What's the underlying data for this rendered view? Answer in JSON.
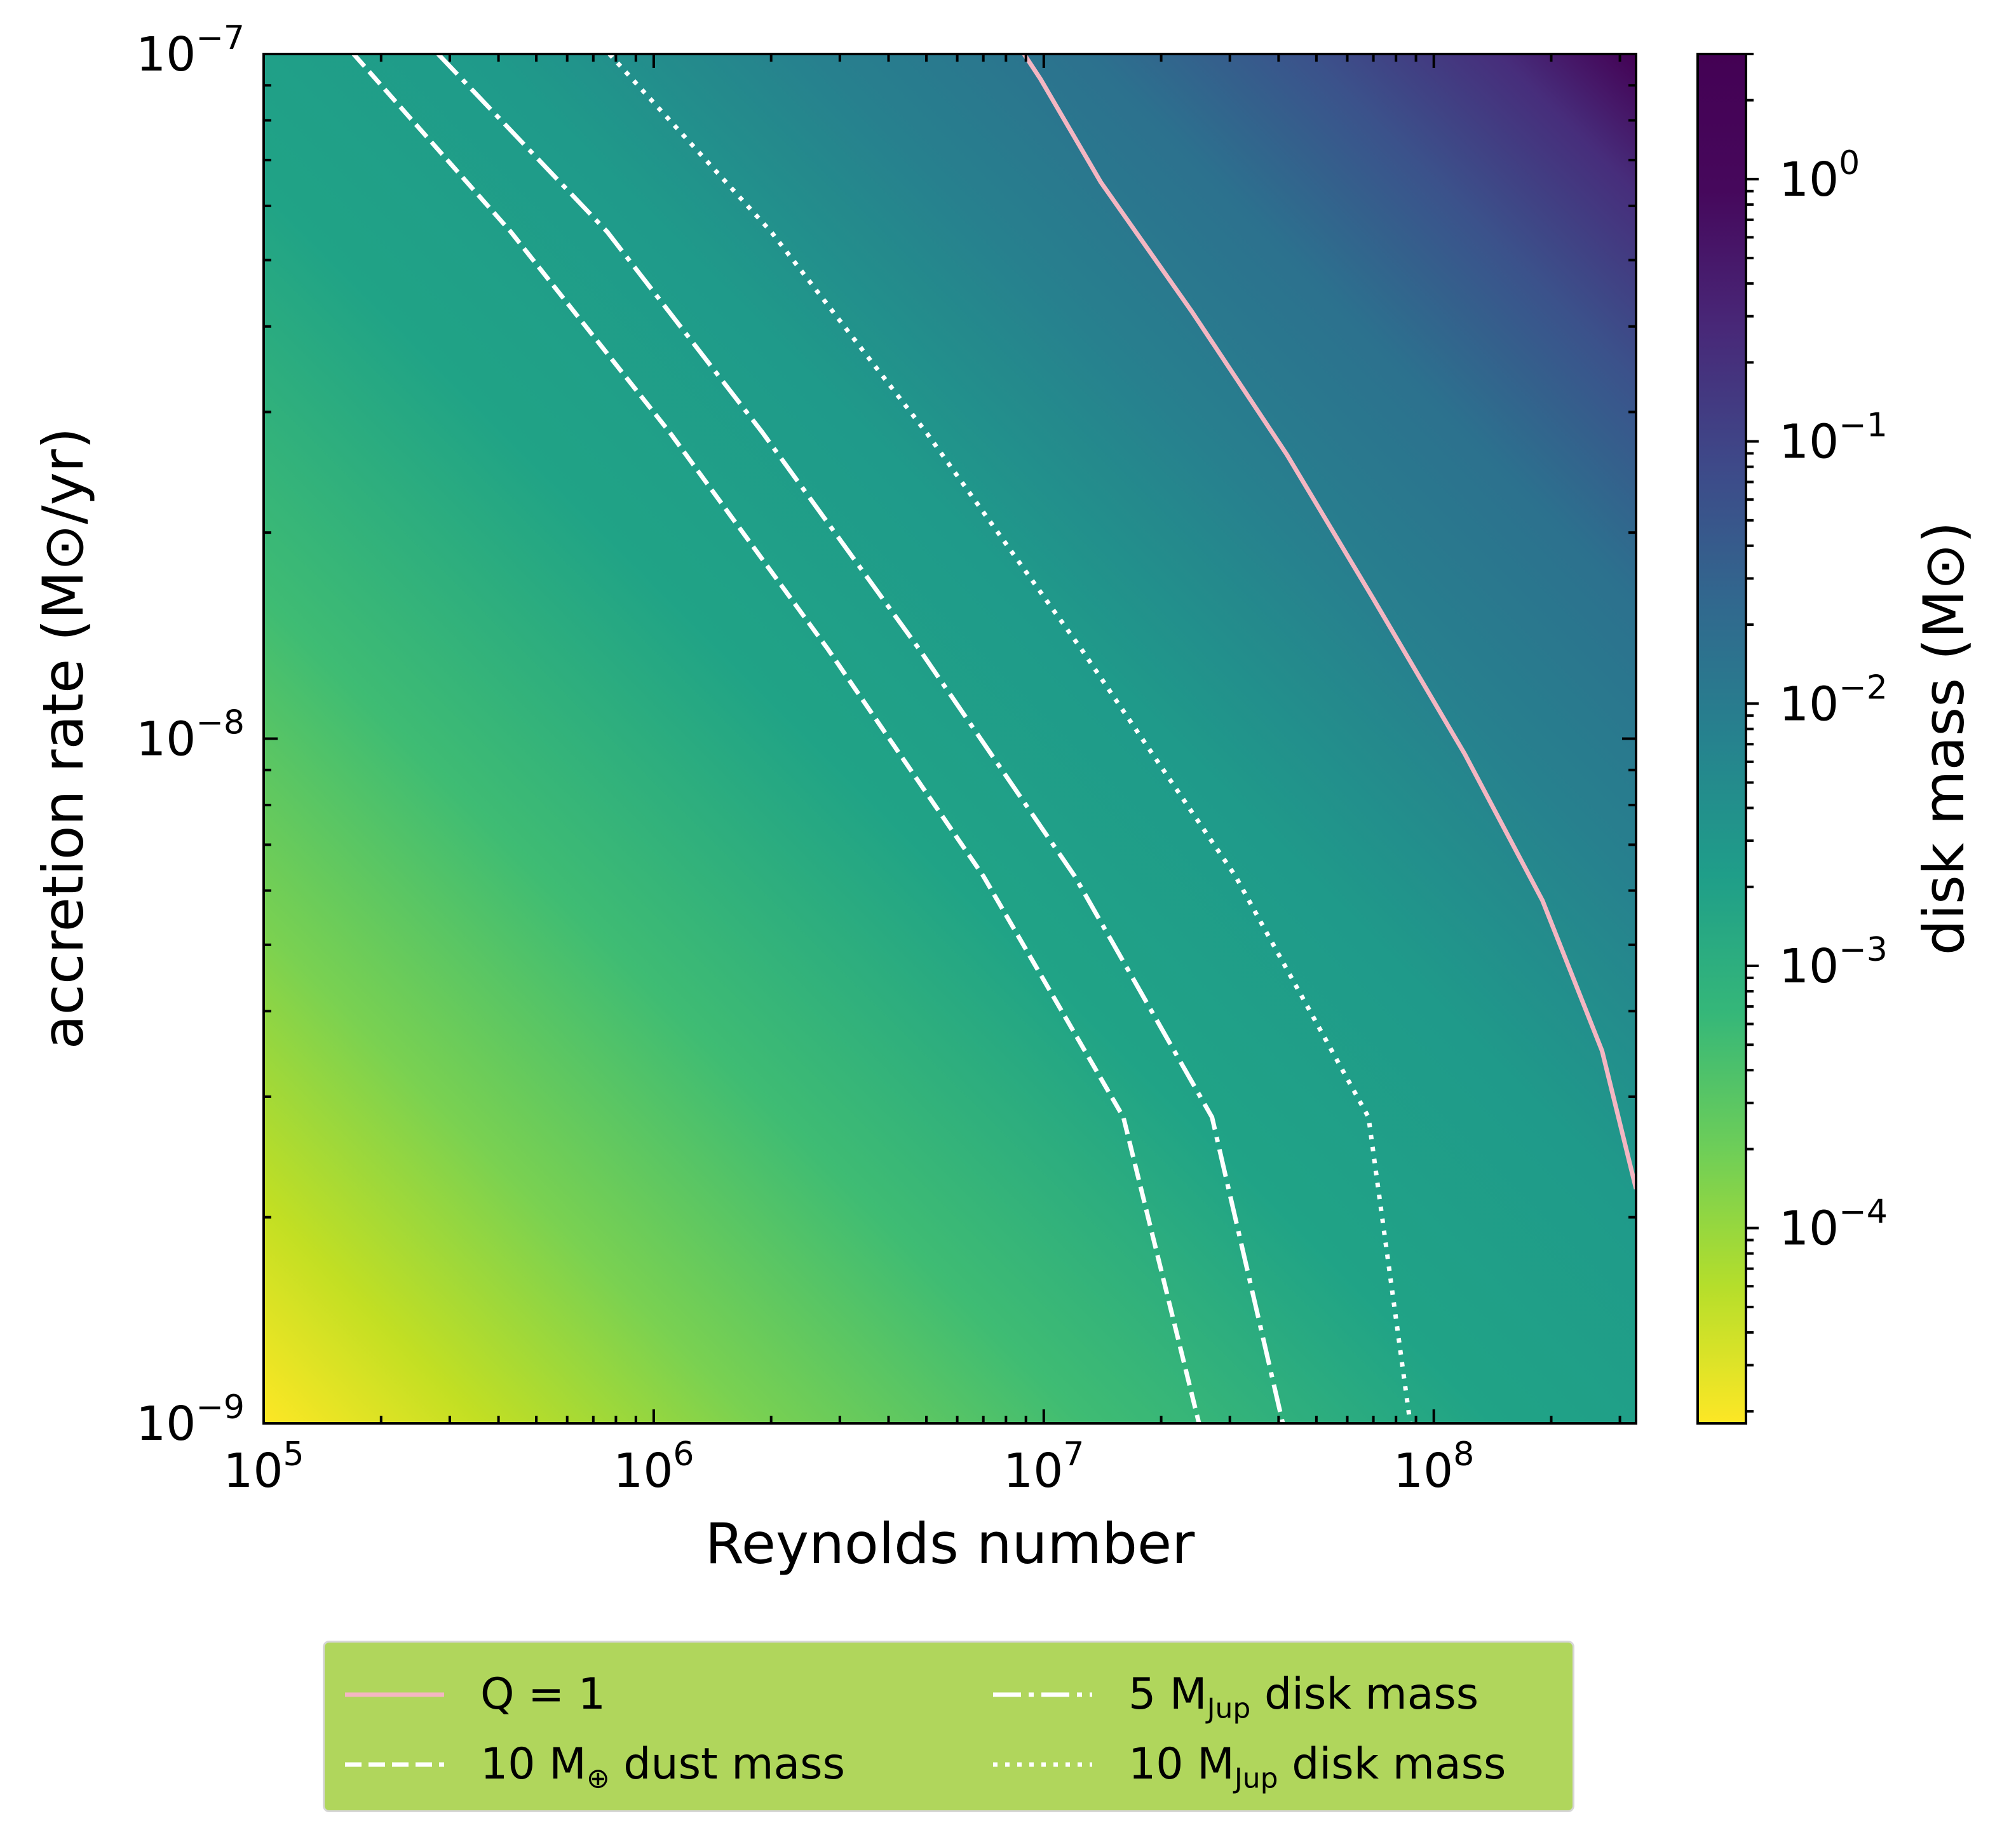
{
  "chart_data": {
    "type": "heatmap",
    "xlabel": "Reynolds number",
    "ylabel": "accretion rate (M⊙/yr)",
    "x_scale": "log",
    "y_scale": "log",
    "xlim": [
      100000,
      330000000
    ],
    "ylim": [
      1e-09,
      1e-07
    ],
    "x_ticks": [
      {
        "value": 100000,
        "base": "10",
        "exp": "5"
      },
      {
        "value": 1000000,
        "base": "10",
        "exp": "6"
      },
      {
        "value": 10000000,
        "base": "10",
        "exp": "7"
      },
      {
        "value": 100000000,
        "base": "10",
        "exp": "8"
      }
    ],
    "y_ticks": [
      {
        "value": 1e-09,
        "base": "10",
        "exp": "−9"
      },
      {
        "value": 1e-08,
        "base": "10",
        "exp": "−8"
      },
      {
        "value": 1e-07,
        "base": "10",
        "exp": "−7"
      }
    ],
    "colorbar": {
      "label": "disk mass (M⊙)",
      "scale": "log",
      "range": [
        1.8e-05,
        3.0
      ],
      "colormap": "viridis_r",
      "ticks": [
        {
          "value": 0.0001,
          "base": "10",
          "exp": "−4"
        },
        {
          "value": 0.001,
          "base": "10",
          "exp": "−3"
        },
        {
          "value": 0.01,
          "base": "10",
          "exp": "−2"
        },
        {
          "value": 0.1,
          "base": "10",
          "exp": "−1"
        },
        {
          "value": 1,
          "base": "10",
          "exp": "0"
        }
      ]
    },
    "grid": false,
    "legend_position": "below",
    "series": [
      {
        "name": "Q = 1",
        "color": "#f4b6c2",
        "style": "solid",
        "points": [
          [
            8900000,
            1e-07
          ],
          [
            9800000,
            9.2e-08
          ],
          [
            14000000,
            6.5e-08
          ],
          [
            24000000,
            4.2e-08
          ],
          [
            42000000,
            2.6e-08
          ],
          [
            70000000,
            1.6e-08
          ],
          [
            120000000,
            9.5e-09
          ],
          [
            190000000,
            5.8e-09
          ],
          [
            270000000,
            3.5e-09
          ],
          [
            330000000,
            2.2e-09
          ]
        ]
      },
      {
        "name": "10 M⊕ dust mass",
        "color": "#ffffff",
        "style": "dashed",
        "points": [
          [
            170000,
            1e-07
          ],
          [
            430000,
            5.5e-08
          ],
          [
            1100000,
            2.8e-08
          ],
          [
            2800000,
            1.35e-08
          ],
          [
            7000000,
            6.3e-09
          ],
          [
            16000000,
            2.8e-09
          ],
          [
            25000000,
            1e-09
          ]
        ]
      },
      {
        "name": "5 Mⱼᵤₚ disk mass",
        "color": "#ffffff",
        "style": "dashdot",
        "points": [
          [
            280000,
            1e-07
          ],
          [
            760000,
            5.5e-08
          ],
          [
            1900000,
            2.8e-08
          ],
          [
            4800000,
            1.35e-08
          ],
          [
            12000000,
            6.3e-09
          ],
          [
            27000000,
            2.8e-09
          ],
          [
            41000000,
            1e-09
          ]
        ]
      },
      {
        "name": "10 Mⱼᵤₚ disk mass",
        "color": "#ffffff",
        "style": "dotted",
        "points": [
          [
            770000,
            1e-07
          ],
          [
            2000000,
            5.5e-08
          ],
          [
            5000000,
            2.8e-08
          ],
          [
            12500000,
            1.35e-08
          ],
          [
            31000000,
            6.3e-09
          ],
          [
            68000000,
            2.8e-09
          ],
          [
            87000000,
            1e-09
          ]
        ]
      }
    ]
  },
  "legend": {
    "background": "#b0d65c",
    "items": [
      {
        "key": "q1",
        "prefix": "Q = 1",
        "sub": "",
        "suffix": ""
      },
      {
        "key": "dust",
        "prefix": "10 M",
        "sub": "⊕",
        "suffix": " dust mass"
      },
      {
        "key": "jup5",
        "prefix": "5 M",
        "sub": "Jup",
        "suffix": " disk mass"
      },
      {
        "key": "jup10",
        "prefix": "10 M",
        "sub": "Jup",
        "suffix": " disk mass"
      }
    ]
  }
}
